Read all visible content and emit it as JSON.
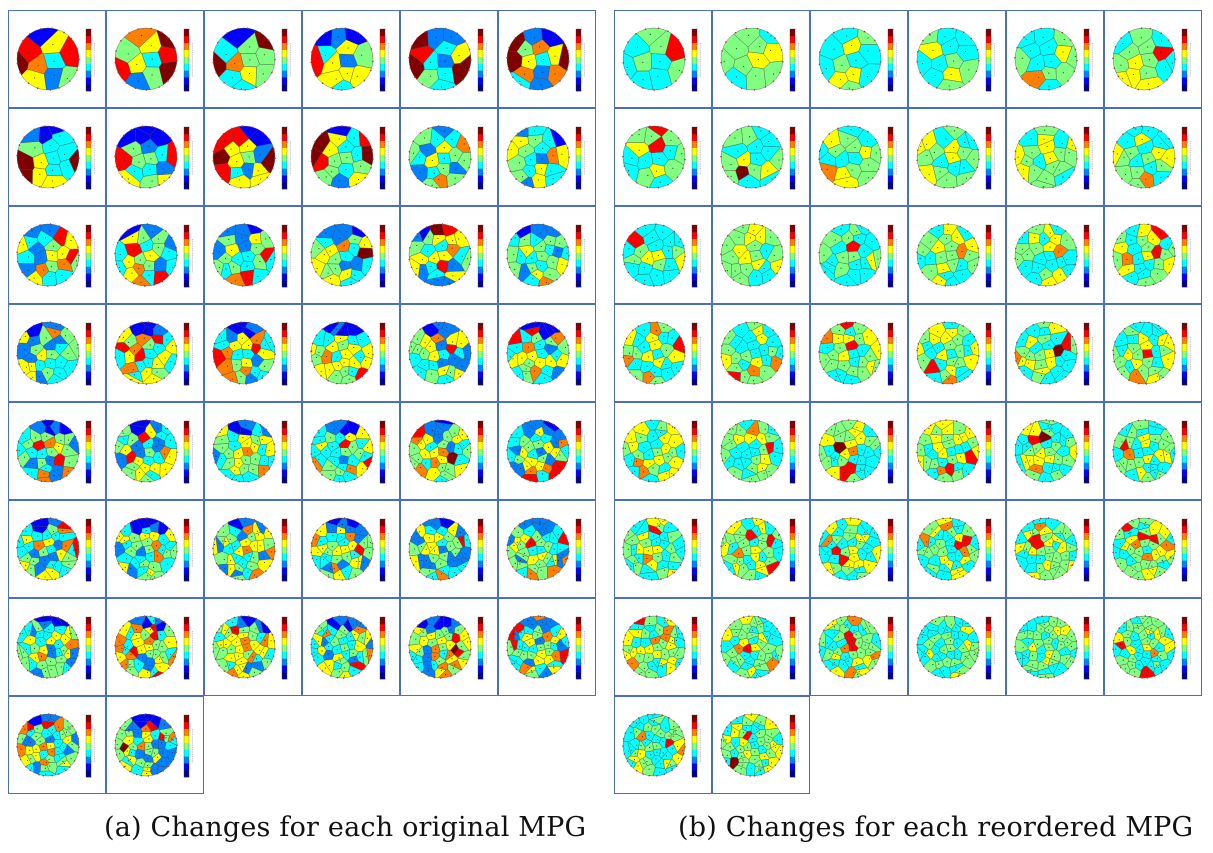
{
  "figure": {
    "caption_a": "(a) Changes for each original MPG",
    "caption_b": "(b) Changes for each reordered MPG"
  },
  "panels": {
    "original": {
      "count": 44,
      "columns": 6
    },
    "reordered": {
      "count": 44,
      "columns": 6
    }
  },
  "colormap": [
    "#00008f",
    "#0000ff",
    "#0080ff",
    "#00ffff",
    "#80ff80",
    "#ffff00",
    "#ff8000",
    "#ff0000",
    "#800000"
  ],
  "colors": {
    "border": "#4a6fc0",
    "edge": "#444444",
    "dot": "#222222",
    "node": "#c03030"
  }
}
